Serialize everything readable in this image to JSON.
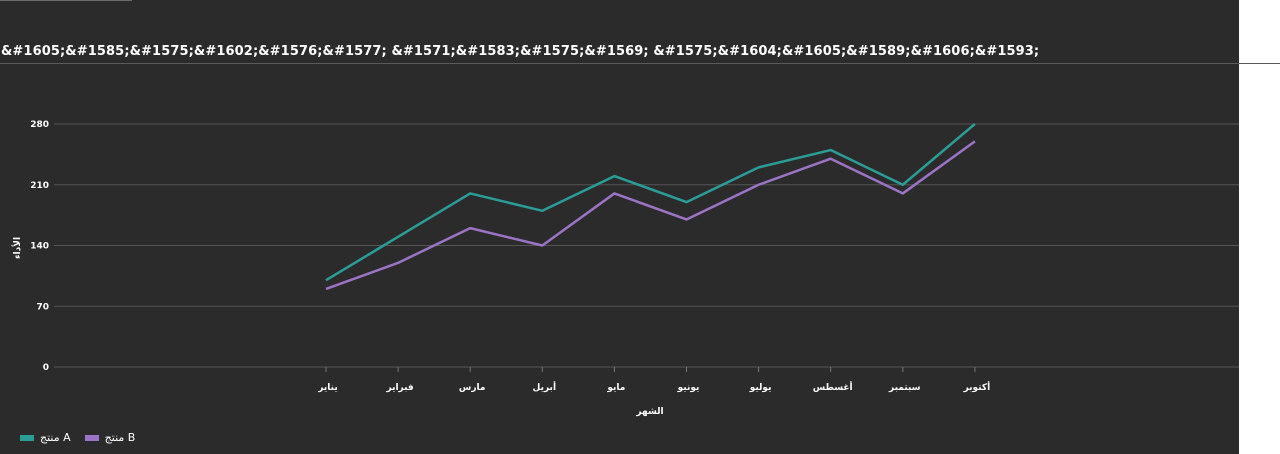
{
  "title": "&#1605;&#1585;&#1575;&#1602;&#1576;&#1577; &#1571;&#1583;&#1575;&#1569; &#1575;&#1604;&#1605;&#1589;&#1606;&#1593;",
  "chart_data": {
    "type": "line",
    "categories": [
      "يناير",
      "فبراير",
      "مارس",
      "أبريل",
      "مايو",
      "يونيو",
      "يوليو",
      "أغسطس",
      "سبتمبر",
      "أكتوبر"
    ],
    "series": [
      {
        "name": "منتج A",
        "color": "#2a9d96",
        "values": [
          100,
          150,
          200,
          180,
          220,
          190,
          230,
          250,
          210,
          280
        ]
      },
      {
        "name": "منتج B",
        "color": "#9b74c6",
        "values": [
          90,
          120,
          160,
          140,
          200,
          170,
          210,
          240,
          200,
          260
        ]
      }
    ],
    "xlabel": "الشهر",
    "ylabel": "الأداء",
    "ylim": [
      0,
      280
    ],
    "yticks": [
      0,
      70,
      140,
      210,
      280
    ],
    "grid": true,
    "legend_position": "bottom-left"
  }
}
